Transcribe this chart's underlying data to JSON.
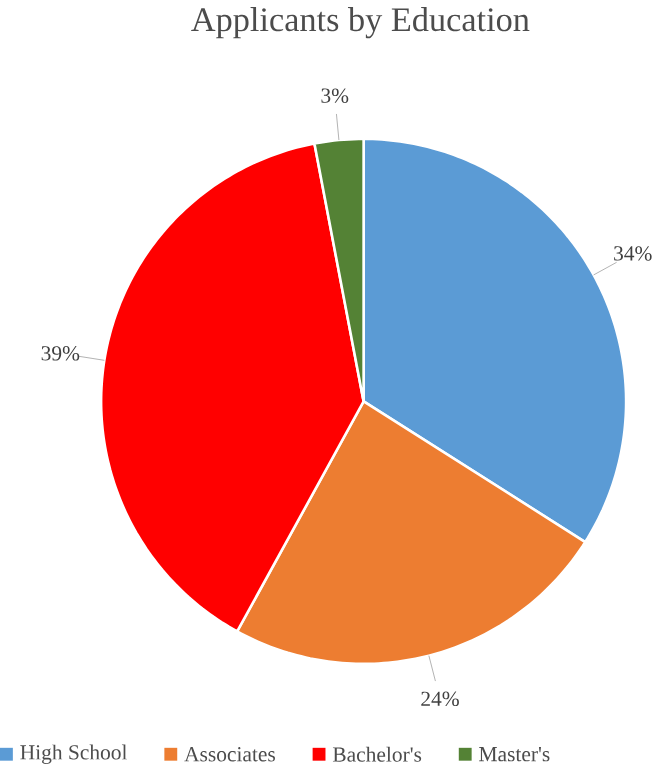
{
  "chart_data": {
    "type": "pie",
    "title": "Applicants by Education",
    "categories": [
      "High School",
      "Associates",
      "Bachelor's",
      "Master's"
    ],
    "values": [
      34,
      24,
      39,
      3
    ],
    "colors": [
      "#5b9bd5",
      "#ed7d31",
      "#ff0000",
      "#548235"
    ],
    "value_labels": [
      "34%",
      "24%",
      "39%",
      "3%"
    ],
    "legend": "bottom"
  }
}
